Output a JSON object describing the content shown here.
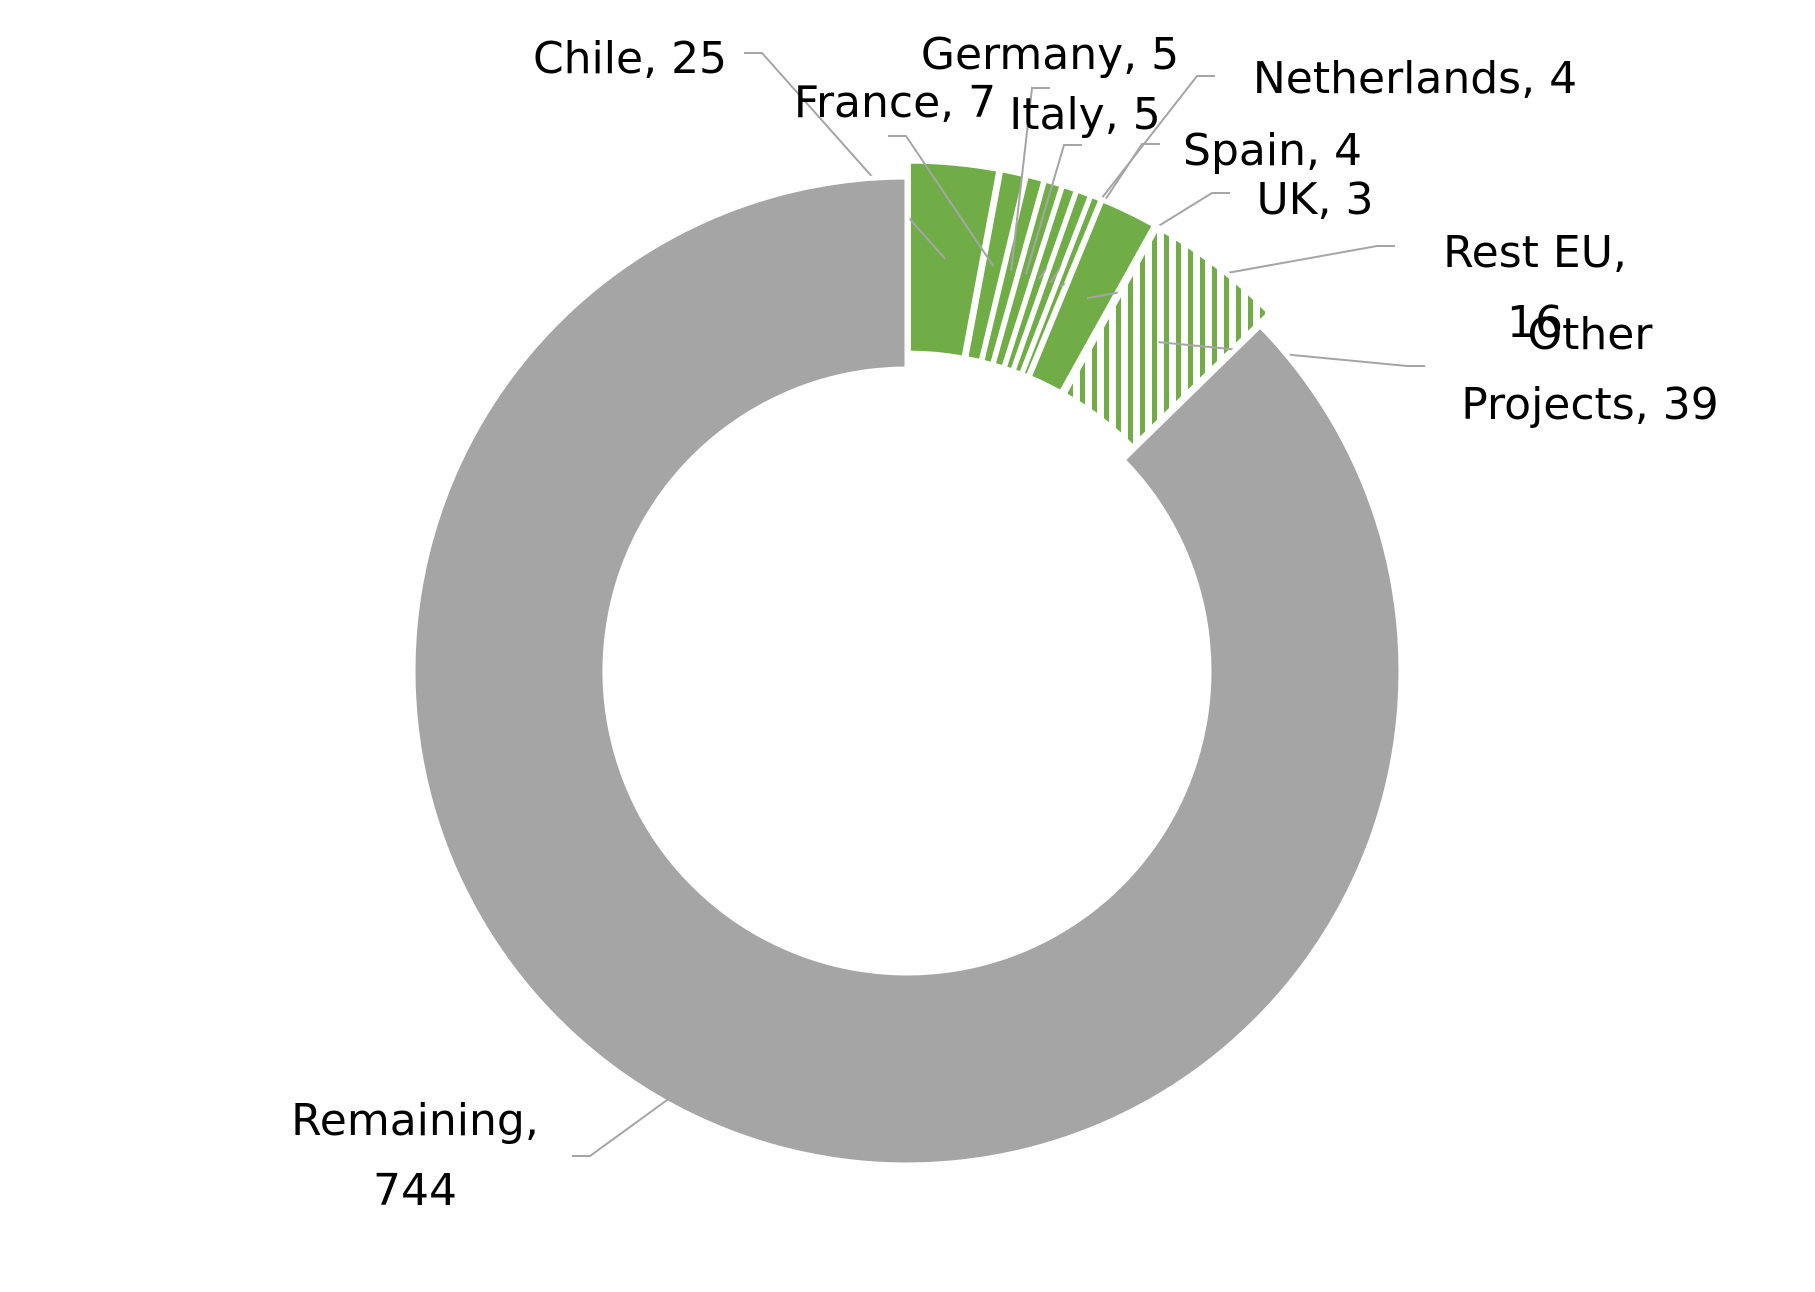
{
  "chart_data": {
    "type": "donut",
    "categories": [
      "Chile,",
      "France,",
      "Germany,",
      "Italy,",
      "Netherlands,",
      "Spain,",
      "UK,",
      "Rest EU,",
      "Other Projects,",
      "Remaining,"
    ],
    "values": [
      25,
      7,
      5,
      5,
      4,
      4,
      3,
      16,
      39,
      744
    ],
    "colors": [
      "#70ad47",
      "#70ad47",
      "#70ad47",
      "#70ad47",
      "#70ad47",
      "#70ad47",
      "#70ad47",
      "#70ad47",
      "#70ad47",
      "#a5a5a5"
    ],
    "hatched": [
      false,
      false,
      false,
      false,
      false,
      false,
      false,
      false,
      true,
      false
    ]
  }
}
